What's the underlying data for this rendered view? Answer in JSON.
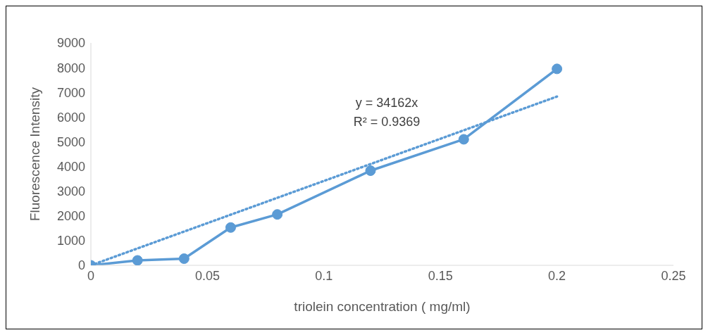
{
  "chart_data": {
    "type": "line",
    "xlabel": "triolein concentration ( mg/ml)",
    "ylabel": "Fluorescence Intensity",
    "xlim": [
      0,
      0.25
    ],
    "xticks": [
      0,
      0.05,
      0.1,
      0.15,
      0.2,
      0.25
    ],
    "ylim": [
      0,
      9000
    ],
    "yticks": [
      0,
      1000,
      2000,
      3000,
      4000,
      5000,
      6000,
      7000,
      8000,
      9000
    ],
    "marker": "circle",
    "line_style": "solid",
    "series": [
      {
        "color": "#5b9bd5",
        "x": [
          0,
          0.02,
          0.04,
          0.06,
          0.08,
          0.12,
          0.16,
          0.2
        ],
        "values": [
          0,
          200,
          270,
          1530,
          2060,
          3830,
          5100,
          7950
        ]
      },
      {
        "type": "line",
        "color": "#5b9bd5",
        "marker": "none",
        "line_style": "dotted",
        "x": [
          0,
          0.2
        ],
        "values": [
          0,
          6830
        ]
      }
    ],
    "annotations": [
      "y = 34162x",
      "R² = 0.9369"
    ]
  }
}
